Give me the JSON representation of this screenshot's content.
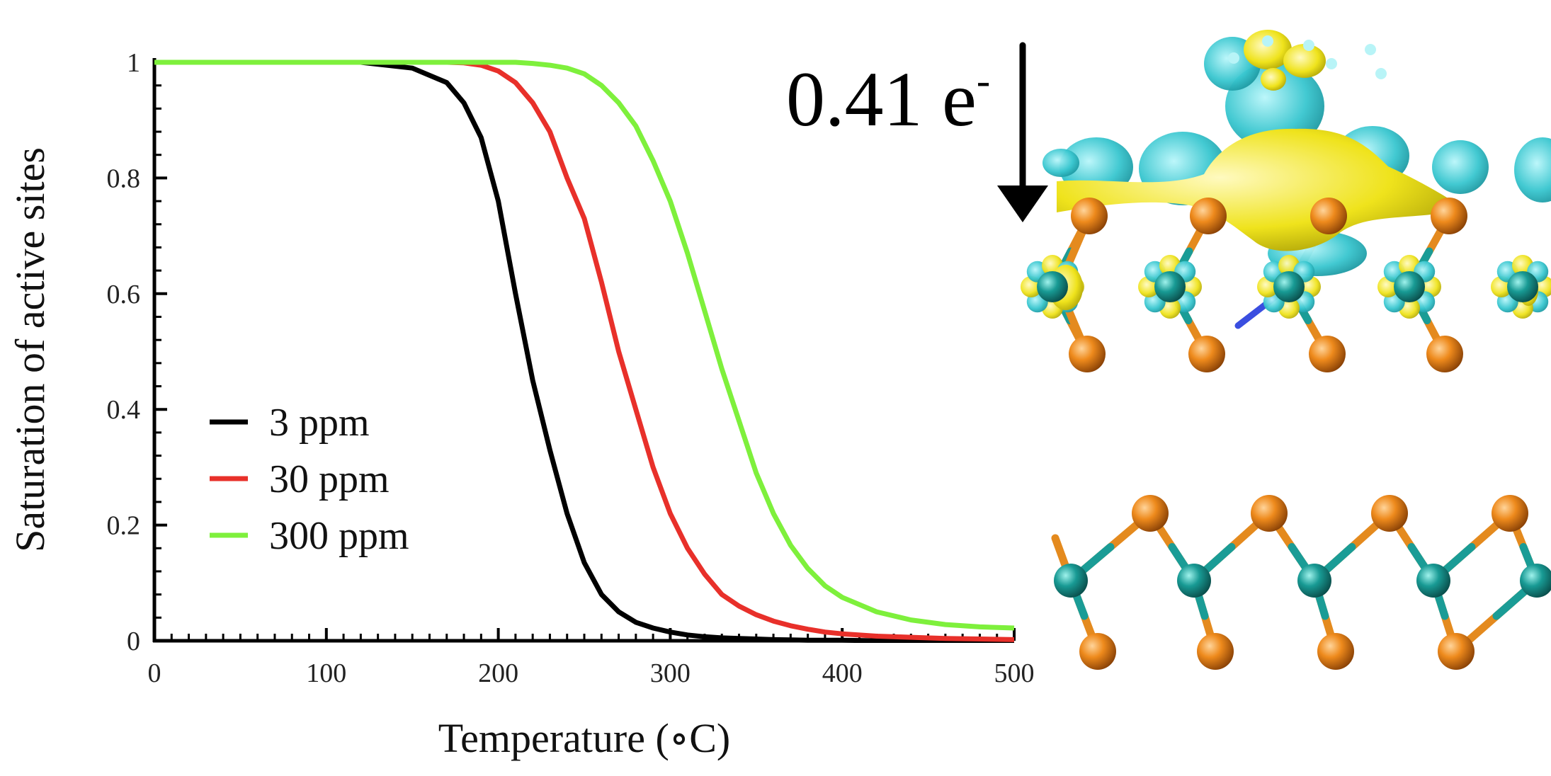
{
  "chart_data": {
    "type": "line",
    "xlabel": "Temperature (∘C)",
    "ylabel": "Saturation of active sites",
    "xlim": [
      0,
      500
    ],
    "ylim": [
      0,
      1
    ],
    "x_ticks": [
      "0",
      "100",
      "200",
      "300",
      "400",
      "500"
    ],
    "y_ticks": [
      "0",
      "0.2",
      "0.4",
      "0.6",
      "0.8",
      "1"
    ],
    "grid": false,
    "legend_position": "bottom-left",
    "x": [
      0,
      100,
      120,
      150,
      170,
      180,
      190,
      200,
      210,
      220,
      230,
      240,
      250,
      260,
      270,
      280,
      290,
      300,
      310,
      320,
      330,
      340,
      350,
      360,
      370,
      380,
      390,
      400,
      420,
      440,
      460,
      480,
      500
    ],
    "series": [
      {
        "name": "3 ppm",
        "color": "#000000",
        "values": [
          1.0,
          1.0,
          1.0,
          0.99,
          0.965,
          0.93,
          0.87,
          0.76,
          0.6,
          0.45,
          0.33,
          0.22,
          0.135,
          0.08,
          0.05,
          0.032,
          0.022,
          0.015,
          0.01,
          0.007,
          0.005,
          0.004,
          0.003,
          0.002,
          0.0015,
          0.001,
          0.001,
          0.001,
          0.0,
          0.0,
          0.0,
          0.0,
          0.0
        ]
      },
      {
        "name": "30 ppm",
        "color": "#e8302a",
        "values": [
          1.0,
          1.0,
          1.0,
          1.0,
          1.0,
          0.999,
          0.995,
          0.985,
          0.965,
          0.93,
          0.88,
          0.8,
          0.73,
          0.62,
          0.5,
          0.4,
          0.3,
          0.22,
          0.16,
          0.115,
          0.08,
          0.06,
          0.045,
          0.034,
          0.026,
          0.02,
          0.015,
          0.012,
          0.008,
          0.006,
          0.004,
          0.003,
          0.002
        ]
      },
      {
        "name": "300 ppm",
        "color": "#7ef03c",
        "values": [
          1.0,
          1.0,
          1.0,
          1.0,
          1.0,
          1.0,
          1.0,
          1.0,
          1.0,
          0.998,
          0.995,
          0.99,
          0.98,
          0.96,
          0.93,
          0.89,
          0.83,
          0.76,
          0.67,
          0.57,
          0.47,
          0.38,
          0.29,
          0.22,
          0.165,
          0.125,
          0.095,
          0.075,
          0.05,
          0.036,
          0.028,
          0.024,
          0.022
        ]
      }
    ]
  },
  "annotation": {
    "charge_transfer": "0.41 e",
    "charge_sign": "-"
  },
  "structure_panels": {
    "top": "adsorbate-on-monolayer-charge-density",
    "bottom": "bare-monolayer-side-view",
    "colors": {
      "orange_atom": "#e8841a",
      "teal_atom": "#1a9c96",
      "charge_accumulation": "#f2ea1d",
      "charge_depletion": "#35c8d0"
    }
  }
}
